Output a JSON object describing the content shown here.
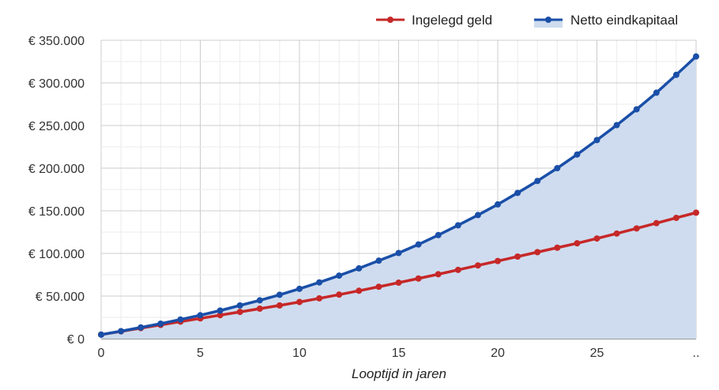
{
  "chart_data": {
    "type": "line",
    "xlabel": "Looptijd in jaren",
    "ylabel": "",
    "x": [
      0,
      1,
      2,
      3,
      4,
      5,
      6,
      7,
      8,
      9,
      10,
      11,
      12,
      13,
      14,
      15,
      16,
      17,
      18,
      19,
      20,
      21,
      22,
      23,
      24,
      25,
      26,
      27,
      28,
      29,
      30
    ],
    "xlim": [
      0,
      30
    ],
    "ylim": [
      0,
      350000
    ],
    "x_ticks": [
      "0",
      "5",
      "10",
      "15",
      "20",
      "25",
      ".."
    ],
    "x_tick_values": [
      0,
      5,
      10,
      15,
      20,
      25,
      30
    ],
    "y_ticks": [
      "€ 0",
      "€ 50.000",
      "€ 100.000",
      "€ 150.000",
      "€ 200.000",
      "€ 250.000",
      "€ 300.000",
      "€ 350.000"
    ],
    "y_tick_values": [
      0,
      50000,
      100000,
      150000,
      200000,
      250000,
      300000,
      350000
    ],
    "grid": true,
    "legend_position": "top-right",
    "series": [
      {
        "name": "Ingelegd geld",
        "color": "#c62828",
        "fill": false,
        "values": [
          4800,
          8600,
          12400,
          16200,
          20000,
          23800,
          27600,
          31400,
          35200,
          39000,
          43000,
          47300,
          51700,
          56200,
          60900,
          65700,
          70600,
          75600,
          80700,
          85900,
          91100,
          96300,
          101500,
          106700,
          111900,
          117500,
          123300,
          129300,
          135500,
          141700,
          147800
        ]
      },
      {
        "name": "Netto eindkapitaal",
        "color": "#1a4fa8",
        "fill": true,
        "fill_color": "#cfdcef",
        "values": [
          4800,
          8800,
          13200,
          17600,
          22500,
          27500,
          33000,
          39000,
          45000,
          51500,
          58500,
          66000,
          74000,
          82500,
          91500,
          100500,
          110500,
          121500,
          133000,
          145000,
          157500,
          171000,
          185000,
          200000,
          216000,
          233000,
          250500,
          269000,
          288500,
          309500,
          331000
        ]
      }
    ]
  }
}
